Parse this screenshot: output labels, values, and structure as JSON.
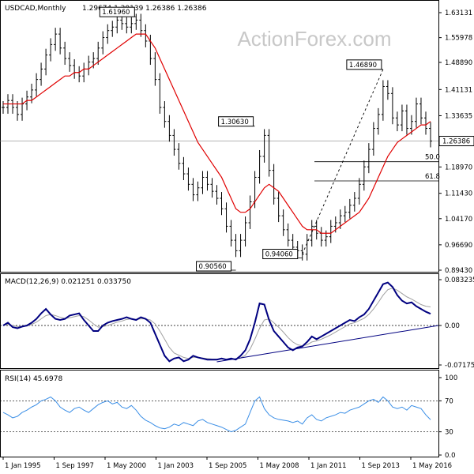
{
  "chart_data": [
    {
      "type": "line",
      "panel": "price",
      "title": "USDCAD,Monthly",
      "ohlc_header": "1.29674 1.30139 1.26386 1.26386",
      "watermark": "ActionForex.com",
      "y_ticks": [
        "1.63131",
        "1.55978",
        "1.48890",
        "1.41131",
        "1.33635",
        "1.26386",
        "1.18970",
        "1.11430",
        "1.04170",
        "0.96690",
        "0.89430"
      ],
      "ylim": [
        0.8943,
        1.63131
      ],
      "last_price_label": "1.26386",
      "annotations": [
        {
          "text": "1.61960",
          "value": 1.6196,
          "date_index": 28
        },
        {
          "text": "1.30630",
          "value": 1.3063,
          "date_index": 53
        },
        {
          "text": "1.46890",
          "value": 1.4689,
          "date_index": 80
        },
        {
          "text": "0.90560",
          "value": 0.9056,
          "date_index": 49
        },
        {
          "text": "0.94060",
          "value": 0.9406,
          "date_index": 63
        }
      ],
      "fib_levels": [
        {
          "label": "50.0",
          "value": 1.2047
        },
        {
          "label": "61.8",
          "value": 1.1497
        }
      ],
      "series": [
        {
          "role": "close",
          "values": [
            1.36,
            1.38,
            1.36,
            1.34,
            1.37,
            1.39,
            1.41,
            1.44,
            1.47,
            1.51,
            1.54,
            1.57,
            1.53,
            1.5,
            1.48,
            1.46,
            1.45,
            1.47,
            1.49,
            1.5,
            1.53,
            1.56,
            1.58,
            1.59,
            1.61,
            1.6,
            1.59,
            1.6,
            1.61,
            1.58,
            1.55,
            1.5,
            1.44,
            1.36,
            1.32,
            1.28,
            1.24,
            1.2,
            1.17,
            1.14,
            1.11,
            1.13,
            1.16,
            1.14,
            1.12,
            1.1,
            1.07,
            1.02,
            0.98,
            0.95,
            0.98,
            1.03,
            1.09,
            1.16,
            1.22,
            1.28,
            1.18,
            1.1,
            1.05,
            1.01,
            0.98,
            0.96,
            0.95,
            0.94,
            0.98,
            1.02,
            1.0,
            0.98,
            0.99,
            1.02,
            1.03,
            1.05,
            1.06,
            1.08,
            1.1,
            1.14,
            1.19,
            1.24,
            1.3,
            1.34,
            1.42,
            1.4,
            1.33,
            1.31,
            1.35,
            1.3,
            1.32,
            1.37,
            1.33,
            1.3,
            1.26386
          ]
        },
        {
          "role": "moving_average",
          "values": [
            1.37,
            1.37,
            1.37,
            1.37,
            1.37,
            1.38,
            1.38,
            1.39,
            1.4,
            1.41,
            1.42,
            1.43,
            1.44,
            1.45,
            1.45,
            1.46,
            1.46,
            1.47,
            1.47,
            1.48,
            1.49,
            1.5,
            1.51,
            1.52,
            1.53,
            1.54,
            1.55,
            1.56,
            1.57,
            1.57,
            1.57,
            1.55,
            1.53,
            1.5,
            1.47,
            1.44,
            1.41,
            1.38,
            1.35,
            1.32,
            1.29,
            1.26,
            1.24,
            1.22,
            1.2,
            1.18,
            1.16,
            1.13,
            1.1,
            1.07,
            1.06,
            1.06,
            1.07,
            1.09,
            1.11,
            1.13,
            1.14,
            1.13,
            1.12,
            1.1,
            1.08,
            1.06,
            1.04,
            1.02,
            1.01,
            1.01,
            1.01,
            1.0,
            1.0,
            1.0,
            1.01,
            1.02,
            1.03,
            1.04,
            1.05,
            1.06,
            1.08,
            1.1,
            1.13,
            1.16,
            1.19,
            1.22,
            1.24,
            1.26,
            1.27,
            1.28,
            1.29,
            1.3,
            1.31,
            1.31,
            1.32
          ]
        }
      ]
    },
    {
      "type": "line",
      "panel": "macd",
      "title": "MACD(12,26,9) 0.021251 0.033750",
      "y_ticks": [
        "0.083235",
        "0.00",
        "-0.071752"
      ],
      "ylim": [
        -0.071752,
        0.083235
      ],
      "series": [
        {
          "role": "macd",
          "values": [
            0.0,
            0.005,
            -0.003,
            -0.005,
            -0.002,
            0.0,
            0.005,
            0.012,
            0.022,
            0.03,
            0.02,
            0.012,
            0.01,
            0.012,
            0.018,
            0.02,
            0.022,
            0.01,
            0.0,
            -0.01,
            -0.01,
            0.0,
            0.005,
            0.008,
            0.01,
            0.012,
            0.015,
            0.012,
            0.01,
            0.015,
            0.012,
            0.005,
            -0.015,
            -0.035,
            -0.055,
            -0.065,
            -0.06,
            -0.058,
            -0.065,
            -0.062,
            -0.055,
            -0.058,
            -0.06,
            -0.062,
            -0.062,
            -0.062,
            -0.06,
            -0.062,
            -0.06,
            -0.062,
            -0.055,
            -0.045,
            -0.025,
            0.005,
            0.04,
            0.038,
            0.01,
            -0.01,
            -0.02,
            -0.03,
            -0.04,
            -0.045,
            -0.04,
            -0.038,
            -0.03,
            -0.02,
            -0.025,
            -0.02,
            -0.015,
            -0.01,
            -0.005,
            0.0,
            0.005,
            0.01,
            0.008,
            0.015,
            0.02,
            0.03,
            0.045,
            0.06,
            0.075,
            0.078,
            0.07,
            0.055,
            0.045,
            0.04,
            0.042,
            0.035,
            0.03,
            0.025,
            0.021251
          ]
        },
        {
          "role": "signal",
          "values": [
            0.0,
            0.002,
            0.0,
            -0.002,
            -0.002,
            -0.001,
            0.002,
            0.006,
            0.012,
            0.018,
            0.02,
            0.018,
            0.015,
            0.013,
            0.014,
            0.016,
            0.018,
            0.016,
            0.01,
            0.003,
            -0.003,
            -0.002,
            0.0,
            0.003,
            0.006,
            0.008,
            0.011,
            0.012,
            0.011,
            0.012,
            0.012,
            0.01,
            0.003,
            -0.01,
            -0.025,
            -0.04,
            -0.05,
            -0.054,
            -0.058,
            -0.06,
            -0.058,
            -0.058,
            -0.059,
            -0.06,
            -0.061,
            -0.061,
            -0.061,
            -0.061,
            -0.061,
            -0.061,
            -0.059,
            -0.054,
            -0.043,
            -0.025,
            -0.005,
            0.01,
            0.012,
            0.005,
            -0.003,
            -0.012,
            -0.022,
            -0.03,
            -0.035,
            -0.037,
            -0.035,
            -0.03,
            -0.028,
            -0.025,
            -0.021,
            -0.017,
            -0.012,
            -0.007,
            -0.002,
            0.003,
            0.005,
            0.009,
            0.013,
            0.02,
            0.03,
            0.042,
            0.055,
            0.065,
            0.068,
            0.064,
            0.058,
            0.052,
            0.048,
            0.043,
            0.038,
            0.035,
            0.03375
          ]
        }
      ],
      "trendline": {
        "from_index": 45,
        "from_value": -0.066,
        "to_index": 90,
        "to_value": 0.0
      }
    },
    {
      "type": "line",
      "panel": "rsi",
      "title": "RSI(14) 45.6978",
      "y_ticks": [
        "100",
        "70",
        "30",
        "0.0"
      ],
      "ylim": [
        0,
        100
      ],
      "levels": [
        70,
        30
      ],
      "series": [
        {
          "role": "rsi",
          "values": [
            55,
            52,
            48,
            50,
            55,
            58,
            62,
            65,
            70,
            72,
            75,
            70,
            62,
            58,
            55,
            60,
            62,
            58,
            55,
            60,
            65,
            68,
            70,
            66,
            68,
            62,
            60,
            64,
            58,
            50,
            45,
            42,
            38,
            35,
            34,
            36,
            40,
            38,
            42,
            40,
            38,
            44,
            46,
            42,
            40,
            38,
            36,
            33,
            30,
            32,
            36,
            40,
            55,
            70,
            75,
            60,
            52,
            48,
            46,
            45,
            44,
            42,
            44,
            40,
            48,
            52,
            46,
            44,
            48,
            50,
            52,
            55,
            54,
            58,
            60,
            62,
            66,
            70,
            72,
            68,
            75,
            70,
            62,
            60,
            62,
            58,
            64,
            62,
            60,
            52,
            45.6978
          ]
        }
      ]
    }
  ],
  "x_axis": {
    "labels": [
      "1 Jan 1995",
      "1 Sep 1997",
      "1 May 2000",
      "1 Jan 2003",
      "1 Sep 2005",
      "1 May 2008",
      "1 Jan 2011",
      "1 Sep 2013",
      "1 May 2016"
    ]
  },
  "colors": {
    "ma": "#e00000",
    "macd": "#000080",
    "signal": "#a0a0a0",
    "rsi": "#3a8ee6",
    "grid": "#000000",
    "trend": "#000080"
  }
}
